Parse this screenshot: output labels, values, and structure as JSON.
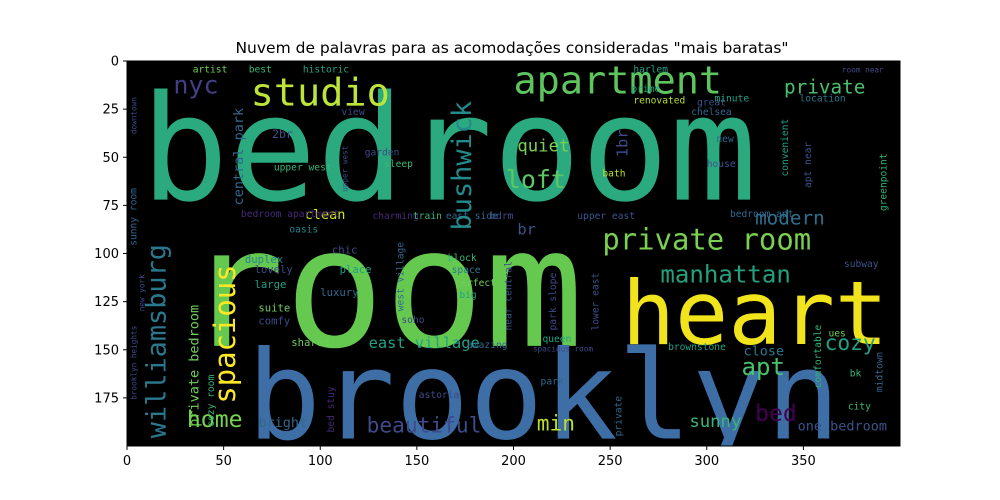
{
  "chart_data": {
    "type": "wordcloud",
    "title": "Nuvem de palavras para as acomodações consideradas \"mais baratas\"",
    "xlabel": "",
    "ylabel": "",
    "xlim": [
      0,
      400
    ],
    "ylim": [
      200,
      0
    ],
    "x_ticks": [
      0,
      50,
      100,
      150,
      200,
      250,
      300,
      350
    ],
    "y_ticks": [
      0,
      25,
      50,
      75,
      100,
      125,
      150,
      175
    ],
    "background": "#000000",
    "words": [
      {
        "text": "bedroom",
        "x": 7,
        "y": 72,
        "size": 76,
        "color": "#2aaa7e"
      },
      {
        "text": "room",
        "x": 30,
        "y": 148,
        "size": 86,
        "color": "#66c94f"
      },
      {
        "text": "brooklyn",
        "x": 62,
        "y": 196,
        "size": 64,
        "color": "#3d6ea6"
      },
      {
        "text": "heart",
        "x": 256,
        "y": 147,
        "size": 46,
        "color": "#f2e41c"
      },
      {
        "text": "apartment",
        "x": 200,
        "y": 17,
        "size": 20,
        "color": "#5ec45e"
      },
      {
        "text": "studio",
        "x": 64,
        "y": 23,
        "size": 20,
        "color": "#bde43a"
      },
      {
        "text": "private room",
        "x": 246,
        "y": 98,
        "size": 15,
        "color": "#7ad151"
      },
      {
        "text": "manhattan",
        "x": 276,
        "y": 115,
        "size": 12.5,
        "color": "#24a07e"
      },
      {
        "text": "private",
        "x": 340,
        "y": 17,
        "size": 10,
        "color": "#4ac16d"
      },
      {
        "text": "nyc",
        "x": 24,
        "y": 17,
        "size": 13,
        "color": "#433e85"
      },
      {
        "text": "loft",
        "x": 196,
        "y": 66,
        "size": 13,
        "color": "#5dc863"
      },
      {
        "text": "quiet",
        "x": 202,
        "y": 47,
        "size": 9,
        "color": "#7ad151"
      },
      {
        "text": "br",
        "x": 202,
        "y": 90,
        "size": 8,
        "color": "#3a538b"
      },
      {
        "text": "modern",
        "x": 325,
        "y": 85,
        "size": 10,
        "color": "#2d708e"
      },
      {
        "text": "cozy",
        "x": 361,
        "y": 150,
        "size": 11,
        "color": "#1fa188"
      },
      {
        "text": "apt",
        "x": 318,
        "y": 163,
        "size": 12.5,
        "color": "#4ac16d"
      },
      {
        "text": "bed",
        "x": 325,
        "y": 187,
        "size": 12,
        "color": "#440154"
      },
      {
        "text": "close",
        "x": 319,
        "y": 153,
        "size": 7,
        "color": "#2a788e"
      },
      {
        "text": "sunny",
        "x": 291,
        "y": 190,
        "size": 9,
        "color": "#35b779"
      },
      {
        "text": "one bedroom",
        "x": 347,
        "y": 192,
        "size": 7,
        "color": "#3b528b"
      },
      {
        "text": "home",
        "x": 31,
        "y": 190,
        "size": 12,
        "color": "#7ad151"
      },
      {
        "text": "bright",
        "x": 68,
        "y": 190,
        "size": 7,
        "color": "#31688e"
      },
      {
        "text": "beautiful",
        "x": 124,
        "y": 193,
        "size": 11,
        "color": "#3e4a89"
      },
      {
        "text": "min",
        "x": 212,
        "y": 192,
        "size": 11,
        "color": "#b8de29"
      },
      {
        "text": "east village",
        "x": 125,
        "y": 149,
        "size": 8,
        "color": "#20a386"
      },
      {
        "text": "clean",
        "x": 92,
        "y": 82,
        "size": 7,
        "color": "#d2e21b"
      },
      {
        "text": "bedroom apartment",
        "x": 59,
        "y": 81,
        "size": 5,
        "color": "#482878"
      },
      {
        "text": "bedroom apt",
        "x": 312,
        "y": 81,
        "size": 5,
        "color": "#31688e"
      },
      {
        "text": "2br",
        "x": 75,
        "y": 40,
        "size": 6,
        "color": "#3b528b"
      },
      {
        "text": "upper west",
        "x": 76,
        "y": 57,
        "size": 5,
        "color": "#35b779"
      },
      {
        "text": "duplex",
        "x": 61,
        "y": 105,
        "size": 5.5,
        "color": "#26828e"
      },
      {
        "text": "lovely",
        "x": 66,
        "y": 110,
        "size": 5.5,
        "color": "#3e4a89"
      },
      {
        "text": "large",
        "x": 66,
        "y": 118,
        "size": 5.5,
        "color": "#1fa188"
      },
      {
        "text": "suite",
        "x": 68,
        "y": 130,
        "size": 5.5,
        "color": "#6ece58"
      },
      {
        "text": "comfy",
        "x": 68,
        "y": 137,
        "size": 5.5,
        "color": "#3e4a89"
      },
      {
        "text": "shared",
        "x": 85,
        "y": 148,
        "size": 5.5,
        "color": "#6ece58"
      },
      {
        "text": "chic",
        "x": 106,
        "y": 100,
        "size": 5.5,
        "color": "#3e4a89"
      },
      {
        "text": "place",
        "x": 110,
        "y": 110,
        "size": 5.5,
        "color": "#1fa188"
      },
      {
        "text": "luxury",
        "x": 100,
        "y": 122,
        "size": 5.5,
        "color": "#31688e"
      },
      {
        "text": "oasis",
        "x": 84,
        "y": 89,
        "size": 5,
        "color": "#26828e"
      },
      {
        "text": "charming",
        "x": 127,
        "y": 82,
        "size": 5,
        "color": "#482878"
      },
      {
        "text": "train",
        "x": 148,
        "y": 82,
        "size": 5,
        "color": "#35b779"
      },
      {
        "text": "east side",
        "x": 165,
        "y": 82,
        "size": 5,
        "color": "#31688e"
      },
      {
        "text": "bdrm",
        "x": 188,
        "y": 82,
        "size": 5,
        "color": "#3e4a89"
      },
      {
        "text": "upper east",
        "x": 233,
        "y": 82,
        "size": 5,
        "color": "#3b528b"
      },
      {
        "text": "garden",
        "x": 123,
        "y": 49,
        "size": 5,
        "color": "#3e4a89"
      },
      {
        "text": "sleep",
        "x": 133,
        "y": 55,
        "size": 5,
        "color": "#35b779"
      },
      {
        "text": "view",
        "x": 111,
        "y": 28,
        "size": 5,
        "color": "#3e4a89"
      },
      {
        "text": "historic",
        "x": 91,
        "y": 6,
        "size": 5,
        "color": "#20a386"
      },
      {
        "text": "best",
        "x": 63,
        "y": 6,
        "size": 5,
        "color": "#35b779"
      },
      {
        "text": "artist",
        "x": 34,
        "y": 6,
        "size": 5,
        "color": "#6ece58"
      },
      {
        "text": "harlem",
        "x": 262,
        "y": 6,
        "size": 5,
        "color": "#20a386"
      },
      {
        "text": "prime",
        "x": 261,
        "y": 16,
        "size": 5,
        "color": "#20a386"
      },
      {
        "text": "renovated",
        "x": 262,
        "y": 22,
        "size": 5,
        "color": "#b5de2b"
      },
      {
        "text": "chelsea",
        "x": 292,
        "y": 28,
        "size": 5,
        "color": "#31688e"
      },
      {
        "text": "great",
        "x": 295,
        "y": 23,
        "size": 5,
        "color": "#3b528b"
      },
      {
        "text": "minute",
        "x": 304,
        "y": 21,
        "size": 5,
        "color": "#1fa188"
      },
      {
        "text": "location",
        "x": 348,
        "y": 21,
        "size": 5,
        "color": "#2a788e"
      },
      {
        "text": "new",
        "x": 305,
        "y": 42,
        "size": 5,
        "color": "#31688e"
      },
      {
        "text": "house",
        "x": 300,
        "y": 55,
        "size": 5,
        "color": "#3b528b"
      },
      {
        "text": "bath",
        "x": 246,
        "y": 60,
        "size": 5,
        "color": "#bddf26"
      },
      {
        "text": "block",
        "x": 166,
        "y": 104,
        "size": 5,
        "color": "#35b779"
      },
      {
        "text": "space",
        "x": 168,
        "y": 110,
        "size": 5,
        "color": "#2a788e"
      },
      {
        "text": "perfect",
        "x": 170,
        "y": 117,
        "size": 5,
        "color": "#6ece58"
      },
      {
        "text": "big",
        "x": 172,
        "y": 123,
        "size": 5,
        "color": "#1fa188"
      },
      {
        "text": "soho",
        "x": 142,
        "y": 136,
        "size": 5,
        "color": "#3e4a89"
      },
      {
        "text": "amazing",
        "x": 176,
        "y": 149,
        "size": 5,
        "color": "#31688e"
      },
      {
        "text": "queen",
        "x": 215,
        "y": 146,
        "size": 5,
        "color": "#20a386"
      },
      {
        "text": "spacious room",
        "x": 210,
        "y": 151,
        "size": 4,
        "color": "#3e4a89"
      },
      {
        "text": "park",
        "x": 214,
        "y": 168,
        "size": 5,
        "color": "#31688e"
      },
      {
        "text": "astoria",
        "x": 151,
        "y": 175,
        "size": 5,
        "color": "#3e4a89"
      },
      {
        "text": "brownstone",
        "x": 280,
        "y": 150,
        "size": 5,
        "color": "#20a386"
      },
      {
        "text": "subway",
        "x": 371,
        "y": 107,
        "size": 5,
        "color": "#3b528b"
      },
      {
        "text": "bk",
        "x": 374,
        "y": 164,
        "size": 5,
        "color": "#35b779"
      },
      {
        "text": "city",
        "x": 373,
        "y": 181,
        "size": 5,
        "color": "#35b779"
      },
      {
        "text": "ues",
        "x": 363,
        "y": 143,
        "size": 5,
        "color": "#6ece58"
      },
      {
        "text": "room near",
        "x": 370,
        "y": 6,
        "size": 4,
        "color": "#3e4a89"
      }
    ],
    "vertical_words": [
      {
        "text": "bushwick",
        "x": 178,
        "y": 88,
        "size": 14,
        "color": "#238a8d",
        "rotate": -90
      },
      {
        "text": "williamsburg",
        "x": 20,
        "y": 196,
        "size": 14,
        "color": "#2a788e",
        "rotate": -90
      },
      {
        "text": "spacious",
        "x": 56,
        "y": 178,
        "size": 15,
        "color": "#fde725",
        "rotate": -90
      },
      {
        "text": "private bedroom",
        "x": 37,
        "y": 190,
        "size": 7,
        "color": "#6ece58",
        "rotate": -90
      },
      {
        "text": "central park",
        "x": 60,
        "y": 75,
        "size": 7,
        "color": "#31688e",
        "rotate": -90
      },
      {
        "text": "1br",
        "x": 259,
        "y": 50,
        "size": 8,
        "color": "#3e4a89",
        "rotate": -90
      },
      {
        "text": "brooklyn heights",
        "x": 5,
        "y": 176,
        "size": 4,
        "color": "#3e4a89",
        "rotate": -90
      },
      {
        "text": "park slope",
        "x": 222,
        "y": 140,
        "size": 5,
        "color": "#3e4a89",
        "rotate": -90
      },
      {
        "text": "west village",
        "x": 143,
        "y": 130,
        "size": 5,
        "color": "#31688e",
        "rotate": -90
      },
      {
        "text": "near central",
        "x": 199,
        "y": 140,
        "size": 5,
        "color": "#3b528b",
        "rotate": -90
      },
      {
        "text": "lower east",
        "x": 244,
        "y": 140,
        "size": 5,
        "color": "#3b528b",
        "rotate": -90
      },
      {
        "text": "bed stuy",
        "x": 107,
        "y": 193,
        "size": 5,
        "color": "#482878",
        "rotate": -90
      },
      {
        "text": "cozy room",
        "x": 45,
        "y": 190,
        "size": 5,
        "color": "#35b779",
        "rotate": -90
      },
      {
        "text": "midtown",
        "x": 391,
        "y": 172,
        "size": 5,
        "color": "#31688e",
        "rotate": -90
      },
      {
        "text": "comfortable",
        "x": 359,
        "y": 170,
        "size": 5,
        "color": "#35b779",
        "rotate": -90
      },
      {
        "text": "sunny room",
        "x": 5,
        "y": 96,
        "size": 5,
        "color": "#31688e",
        "rotate": -90
      },
      {
        "text": "greenpoint",
        "x": 393,
        "y": 78,
        "size": 5,
        "color": "#35b779",
        "rotate": -90
      },
      {
        "text": "convenient",
        "x": 342,
        "y": 60,
        "size": 5,
        "color": "#1fa188",
        "rotate": -90
      },
      {
        "text": "apt near",
        "x": 354,
        "y": 66,
        "size": 5,
        "color": "#3b528b",
        "rotate": -90
      },
      {
        "text": "downtown",
        "x": 5,
        "y": 38,
        "size": 4,
        "color": "#3e4a89",
        "rotate": -90
      },
      {
        "text": "new york",
        "x": 9,
        "y": 130,
        "size": 4,
        "color": "#3e4a89",
        "rotate": -90
      },
      {
        "text": "upper west",
        "x": 114,
        "y": 68,
        "size": 4,
        "color": "#3e4a89",
        "rotate": -90
      },
      {
        "text": "private",
        "x": 256,
        "y": 195,
        "size": 5,
        "color": "#31688e",
        "rotate": -90
      }
    ]
  }
}
